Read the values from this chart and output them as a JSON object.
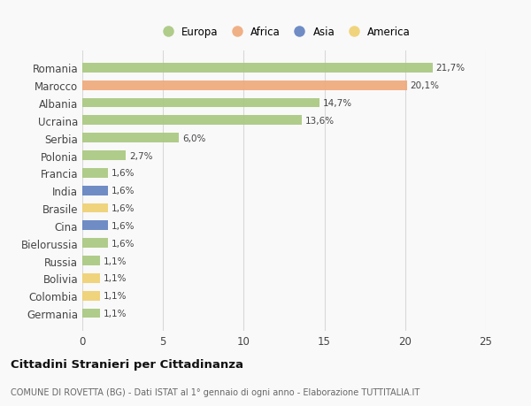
{
  "categories": [
    "Romania",
    "Marocco",
    "Albania",
    "Ucraina",
    "Serbia",
    "Polonia",
    "Francia",
    "India",
    "Brasile",
    "Cina",
    "Bielorussia",
    "Russia",
    "Bolivia",
    "Colombia",
    "Germania"
  ],
  "values": [
    21.7,
    20.1,
    14.7,
    13.6,
    6.0,
    2.7,
    1.6,
    1.6,
    1.6,
    1.6,
    1.6,
    1.1,
    1.1,
    1.1,
    1.1
  ],
  "labels": [
    "21,7%",
    "20,1%",
    "14,7%",
    "13,6%",
    "6,0%",
    "2,7%",
    "1,6%",
    "1,6%",
    "1,6%",
    "1,6%",
    "1,6%",
    "1,1%",
    "1,1%",
    "1,1%",
    "1,1%"
  ],
  "continents": [
    "Europa",
    "Africa",
    "Europa",
    "Europa",
    "Europa",
    "Europa",
    "Europa",
    "Asia",
    "America",
    "Asia",
    "Europa",
    "Europa",
    "America",
    "America",
    "Europa"
  ],
  "colors": {
    "Europa": "#a8c87e",
    "Africa": "#f0a878",
    "Asia": "#6080c0",
    "America": "#f0d070"
  },
  "legend_order": [
    "Europa",
    "Africa",
    "Asia",
    "America"
  ],
  "title": "Cittadini Stranieri per Cittadinanza",
  "subtitle": "COMUNE DI ROVETTA (BG) - Dati ISTAT al 1° gennaio di ogni anno - Elaborazione TUTTITALIA.IT",
  "xlim": [
    0,
    25
  ],
  "xticks": [
    0,
    5,
    10,
    15,
    20,
    25
  ],
  "background_color": "#f9f9f9",
  "grid_color": "#d8d8d8",
  "bar_height": 0.55
}
